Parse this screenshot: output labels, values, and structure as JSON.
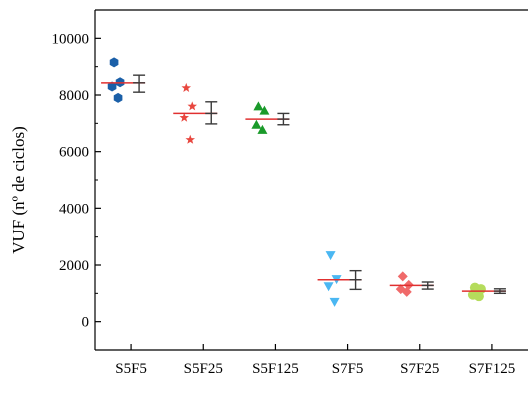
{
  "chart_data": {
    "type": "scatter",
    "title": "",
    "xlabel": "",
    "ylabel": "VUF (nº de ciclos)",
    "ylim": [
      -1000,
      11000
    ],
    "yticks": [
      0,
      2000,
      4000,
      6000,
      8000,
      10000
    ],
    "grid": false,
    "categories": [
      "S5F5",
      "S5F25",
      "S5F125",
      "S7F5",
      "S7F25",
      "S7F125"
    ],
    "series": [
      {
        "category": "S5F5",
        "marker": "hexagon",
        "color": "#1a5fa8",
        "values": [
          9150,
          8450,
          8300,
          7900
        ],
        "mean": 8430,
        "error_low": 8100,
        "error_high": 8700
      },
      {
        "category": "S5F25",
        "marker": "star",
        "color": "#e8473f",
        "values": [
          8250,
          7600,
          7200,
          6420
        ],
        "mean": 7350,
        "error_low": 6980,
        "error_high": 7760
      },
      {
        "category": "S5F125",
        "marker": "triangle",
        "color": "#1a9a2a",
        "values": [
          7600,
          7450,
          6950,
          6770
        ],
        "mean": 7150,
        "error_low": 6950,
        "error_high": 7350
      },
      {
        "category": "S7F5",
        "marker": "triangle-down",
        "color": "#4ab7f2",
        "values": [
          2350,
          1500,
          1250,
          700
        ],
        "mean": 1480,
        "error_low": 1140,
        "error_high": 1800
      },
      {
        "category": "S7F25",
        "marker": "diamond",
        "color": "#f06a6a",
        "values": [
          1600,
          1300,
          1150,
          1050
        ],
        "mean": 1280,
        "error_low": 1150,
        "error_high": 1400
      },
      {
        "category": "S7F125",
        "marker": "circle",
        "color": "#b5dc5c",
        "values": [
          1200,
          1150,
          950,
          900
        ],
        "mean": 1080,
        "error_low": 1000,
        "error_high": 1160
      }
    ],
    "mean_line_color": "#e03030",
    "errorbar_color": "#3a3a3a"
  }
}
